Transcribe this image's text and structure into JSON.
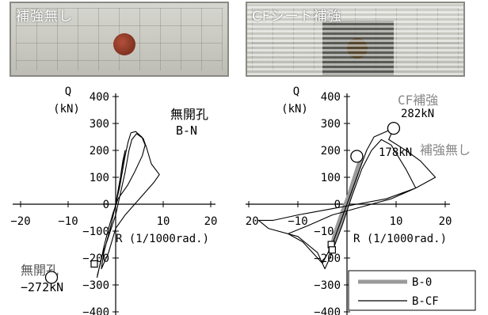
{
  "photos": {
    "left_label": "補強無し",
    "right_label": "CFシート補強"
  },
  "chart_data": [
    {
      "type": "line",
      "panel": "left",
      "ylabel_line1": "Q",
      "ylabel_line2": "(kN)",
      "xlabel": "R (1/1000rad.)",
      "xlim": [
        -20,
        20
      ],
      "ylim": [
        -400,
        400
      ],
      "xticks": [
        -20,
        -10,
        0,
        10,
        20
      ],
      "yticks": [
        400,
        300,
        200,
        100,
        0,
        -100,
        -200,
        -300,
        -400
      ],
      "xtick_labels": [
        "−20",
        "−10",
        "0",
        "10",
        "20"
      ],
      "ytick_labels": [
        "400",
        "300",
        "200",
        "100",
        "0",
        "−100",
        "−200",
        "−300",
        "−400"
      ],
      "annotations": {
        "specimen_line1": "無開孔",
        "specimen_line2": "B-N",
        "peak_neg_line1": "無開孔",
        "peak_neg_line2": "−272kN"
      },
      "series": [
        {
          "color": "#000000",
          "points": [
            [
              0,
              0
            ],
            [
              0.8,
              60
            ],
            [
              1.4,
              120
            ],
            [
              2.0,
              180
            ],
            [
              2.6,
              230
            ],
            [
              3.2,
              265
            ],
            [
              4.2,
              270
            ],
            [
              5.5,
              250
            ],
            [
              6.2,
              220
            ],
            [
              5.6,
              180
            ],
            [
              4.0,
              120
            ],
            [
              2.5,
              70
            ],
            [
              0.5,
              20
            ],
            [
              -0.5,
              -30
            ],
            [
              -1.5,
              -90
            ],
            [
              -2.5,
              -160
            ],
            [
              -3.2,
              -220
            ],
            [
              -3.8,
              -260
            ],
            [
              -3.9,
              -272
            ],
            [
              -3.0,
              -200
            ],
            [
              -1.5,
              -120
            ],
            [
              0,
              -40
            ],
            [
              1.0,
              40
            ],
            [
              2.0,
              120
            ],
            [
              2.8,
              200
            ],
            [
              3.4,
              240
            ],
            [
              4.4,
              262
            ],
            [
              5.8,
              244
            ],
            [
              6.5,
              210
            ],
            [
              7.5,
              150
            ],
            [
              9.2,
              110
            ],
            [
              8.0,
              80
            ],
            [
              5.0,
              20
            ],
            [
              2.0,
              -40
            ],
            [
              0,
              -90
            ],
            [
              -1.5,
              -180
            ],
            [
              -3.0,
              -240
            ],
            [
              -2.5,
              -180
            ],
            [
              -1.0,
              -80
            ],
            [
              0.5,
              40
            ],
            [
              1.5,
              160
            ],
            [
              2.0,
              200
            ],
            [
              1.2,
              120
            ],
            [
              0,
              0
            ]
          ]
        }
      ],
      "markers": [
        {
          "shape": "circle",
          "x": -13.5,
          "y": -272
        },
        {
          "shape": "square",
          "x": -4.5,
          "y": -222
        }
      ]
    },
    {
      "type": "line",
      "panel": "right",
      "ylabel_line1": "Q",
      "ylabel_line2": "(kN)",
      "xlabel": "R (1/1000rad.)",
      "xlim": [
        -20,
        20
      ],
      "ylim": [
        -400,
        400
      ],
      "xticks": [
        -20,
        -10,
        0,
        10,
        20
      ],
      "yticks": [
        400,
        300,
        200,
        100,
        0,
        -100,
        -200,
        -300,
        -400
      ],
      "xtick_labels": [
        "−20",
        "−10",
        "0",
        "10",
        "20"
      ],
      "ytick_labels": [
        "400",
        "300",
        "200",
        "100",
        "0",
        "−100",
        "−200",
        "−300",
        "−400"
      ],
      "annotations": {
        "cf_line1": "CF補強",
        "cf_line2": "282kN",
        "base_value": "178kN",
        "base_label": "補強無し"
      },
      "legend": {
        "position": "bottom-right",
        "entries": [
          {
            "name": "B-0",
            "color": "#9a9a9a"
          },
          {
            "name": "B-CF",
            "color": "#000000"
          }
        ]
      },
      "series": [
        {
          "name": "B-0",
          "color": "#9a9a9a",
          "points": [
            [
              0,
              0
            ],
            [
              1,
              60
            ],
            [
              2,
              120
            ],
            [
              2.6,
              160
            ],
            [
              3.0,
              178
            ],
            [
              2.2,
              140
            ],
            [
              0.8,
              60
            ],
            [
              -0.8,
              -40
            ],
            [
              -2.0,
              -100
            ],
            [
              -3.0,
              -150
            ],
            [
              -3.5,
              -170
            ],
            [
              -2.5,
              -120
            ],
            [
              -1,
              -50
            ],
            [
              0.5,
              30
            ],
            [
              1.8,
              100
            ],
            [
              2.8,
              160
            ],
            [
              2.2,
              130
            ],
            [
              0.5,
              40
            ],
            [
              -1.0,
              -30
            ],
            [
              -2.5,
              -110
            ],
            [
              -3.2,
              -160
            ],
            [
              -2.0,
              -110
            ],
            [
              0,
              0
            ]
          ]
        },
        {
          "name": "B-CF",
          "color": "#000000",
          "points": [
            [
              0,
              0
            ],
            [
              2,
              100
            ],
            [
              4,
              200
            ],
            [
              5.5,
              250
            ],
            [
              9.5,
              282
            ],
            [
              8.5,
              240
            ],
            [
              12,
              200
            ],
            [
              15,
              160
            ],
            [
              17,
              120
            ],
            [
              18,
              100
            ],
            [
              14,
              60
            ],
            [
              8,
              20
            ],
            [
              2,
              0
            ],
            [
              -4,
              -20
            ],
            [
              -10,
              -40
            ],
            [
              -15,
              -60
            ],
            [
              -18,
              -60
            ],
            [
              -16,
              -90
            ],
            [
              -10,
              -120
            ],
            [
              -6,
              -180
            ],
            [
              -4.5,
              -240
            ],
            [
              -3.5,
              -200
            ],
            [
              -1,
              -80
            ],
            [
              1,
              30
            ],
            [
              3,
              130
            ],
            [
              5,
              200
            ],
            [
              7,
              240
            ],
            [
              9,
              220
            ],
            [
              12,
              130
            ],
            [
              14,
              60
            ],
            [
              9,
              20
            ],
            [
              3,
              -10
            ],
            [
              -3,
              -40
            ],
            [
              -8,
              -80
            ],
            [
              -12,
              -110
            ],
            [
              -9,
              -140
            ],
            [
              -5,
              -220
            ],
            [
              -3,
              -150
            ],
            [
              0,
              0
            ]
          ]
        }
      ],
      "markers": [
        {
          "shape": "circle",
          "x": 9.5,
          "y": 282
        },
        {
          "shape": "circle",
          "x": 2.0,
          "y": 178
        },
        {
          "shape": "square",
          "x": -3.2,
          "y": -150
        },
        {
          "shape": "square",
          "x": -3.0,
          "y": -170
        }
      ]
    }
  ]
}
